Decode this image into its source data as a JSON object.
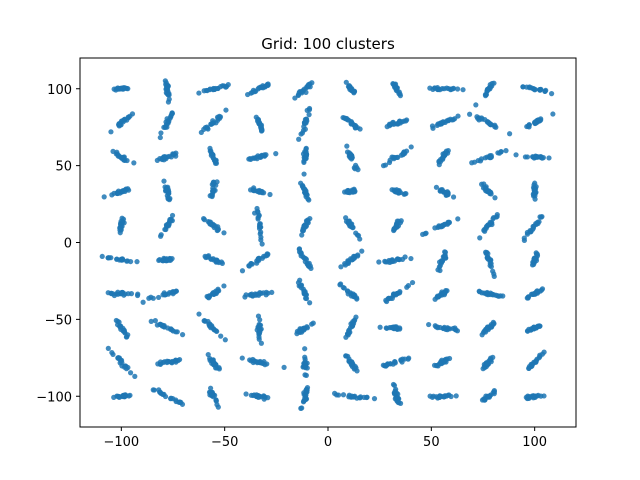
{
  "chart_data": {
    "type": "scatter",
    "title": "Grid: 100 clusters",
    "xlabel": "",
    "ylabel": "",
    "xlim": [
      -120,
      120
    ],
    "ylim": [
      -120,
      120
    ],
    "xticks": [
      -100,
      -50,
      0,
      50,
      100
    ],
    "yticks": [
      -100,
      -50,
      0,
      50,
      100
    ],
    "xtick_labels": [
      "−100",
      "−50",
      "0",
      "50",
      "100"
    ],
    "ytick_labels": [
      "−100",
      "−50",
      "0",
      "50",
      "100"
    ],
    "grid": false,
    "marker_color": "#1f77b4",
    "marker_alpha": 0.85,
    "cluster_centers_x": [
      -100,
      -77.8,
      -55.6,
      -33.3,
      -11.1,
      11.1,
      33.3,
      55.6,
      77.8,
      100
    ],
    "cluster_centers_y": [
      100,
      77.8,
      55.6,
      33.3,
      11.1,
      -11.1,
      -33.3,
      -55.6,
      -77.8,
      -100
    ],
    "points_per_cluster": 20,
    "cluster_spread": 2.5
  }
}
